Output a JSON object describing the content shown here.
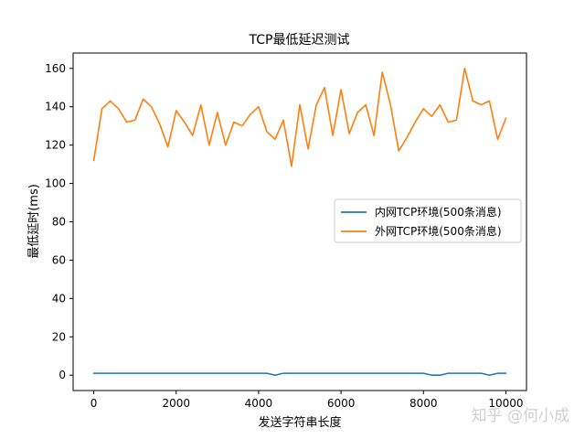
{
  "chart_data": {
    "type": "line",
    "title": "TCP最低延迟测试",
    "xlabel": "发送字符串长度",
    "ylabel": "最低延时(ms)",
    "xlim": [
      -500,
      10500
    ],
    "ylim": [
      -8,
      168
    ],
    "xticks": [
      0,
      2000,
      4000,
      6000,
      8000,
      10000
    ],
    "yticks": [
      0,
      20,
      40,
      60,
      80,
      100,
      120,
      140,
      160
    ],
    "grid": false,
    "legend": "center-right",
    "x": [
      0,
      200,
      400,
      600,
      800,
      1000,
      1200,
      1400,
      1600,
      1800,
      2000,
      2200,
      2400,
      2600,
      2800,
      3000,
      3200,
      3400,
      3600,
      3800,
      4000,
      4200,
      4400,
      4600,
      4800,
      5000,
      5200,
      5400,
      5600,
      5800,
      6000,
      6200,
      6400,
      6600,
      6800,
      7000,
      7200,
      7400,
      7600,
      7800,
      8000,
      8200,
      8400,
      8600,
      8800,
      9000,
      9200,
      9400,
      9600,
      9800,
      10000
    ],
    "series": [
      {
        "name": "内网TCP环境(500条消息)",
        "color": "#1f77b4",
        "values": [
          1,
          1,
          1,
          1,
          1,
          1,
          1,
          1,
          1,
          1,
          1,
          1,
          1,
          1,
          1,
          1,
          1,
          1,
          1,
          1,
          1,
          1,
          0,
          1,
          1,
          1,
          1,
          1,
          1,
          1,
          1,
          1,
          1,
          1,
          1,
          1,
          1,
          1,
          1,
          1,
          1,
          0,
          0,
          1,
          1,
          1,
          1,
          1,
          0,
          1,
          1
        ]
      },
      {
        "name": "外网TCP环境(500条消息)",
        "color": "#ff7f0e",
        "values": [
          112,
          139,
          143,
          139,
          132,
          133,
          144,
          140,
          131,
          119,
          138,
          132,
          125,
          141,
          120,
          137,
          120,
          132,
          130,
          136,
          140,
          127,
          123,
          133,
          109,
          141,
          118,
          141,
          150,
          125,
          149,
          126,
          137,
          141,
          125,
          158,
          141,
          117,
          124,
          132,
          139,
          135,
          141,
          132,
          133,
          160,
          143,
          141,
          143,
          123,
          134
        ]
      }
    ]
  },
  "watermark": "知乎 @何小成"
}
